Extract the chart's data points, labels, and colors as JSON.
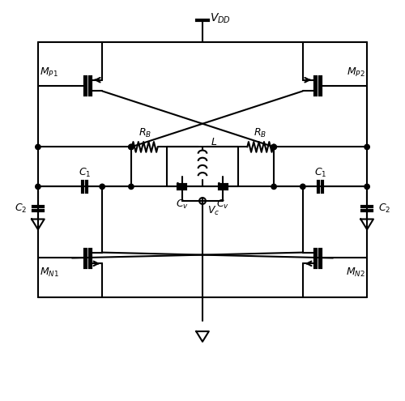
{
  "fig_width": 5.0,
  "fig_height": 4.95,
  "dpi": 100,
  "bg_color": "#ffffff",
  "line_color": "#000000",
  "line_width": 1.5,
  "labels": {
    "VDD": "$V_{DD}$",
    "MP1": "$M_{P1}$",
    "MP2": "$M_{P2}$",
    "MN1": "$M_{N1}$",
    "MN2": "$M_{N2}$",
    "RB_left": "$R_B$",
    "RB_right": "$R_B$",
    "L": "$L$",
    "C1_left": "$C_1$",
    "C1_right": "$C_1$",
    "C2_left": "$C_2$",
    "C2_right": "$C_2$",
    "Cv_left": "$C_v$",
    "Cv_right": "$C_v$",
    "Vc": "$V_c$"
  }
}
